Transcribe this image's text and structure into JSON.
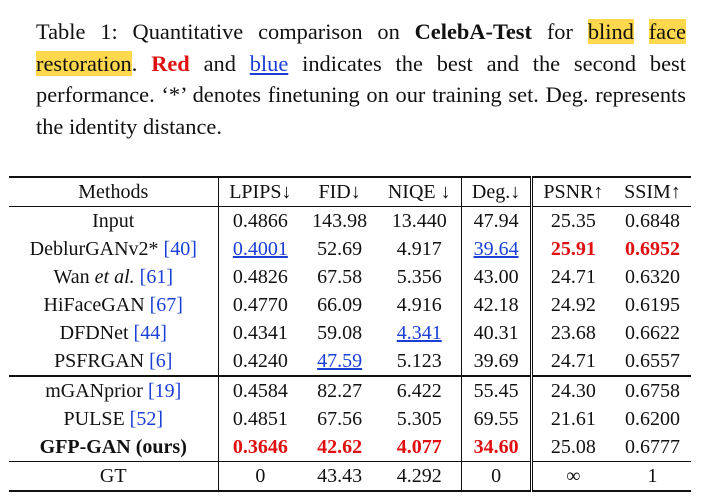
{
  "caption": {
    "prefix": "Table 1: Quantitative comparison on ",
    "dataset": "CelebA-Test",
    "for_text": " for ",
    "highlight1": "blind",
    "space": " ",
    "highlight2": "face restoration",
    "period": ". ",
    "red_word": "Red",
    "and_text": " and ",
    "blue_word": "blue",
    "rest": " indicates the best and the second best performance. ‘*’ denotes finetuning on our training set. Deg. represents the identity distance."
  },
  "table": {
    "headers": [
      "Methods",
      "LPIPS↓",
      "FID↓",
      "NIQE ↓",
      "Deg.↓",
      "PSNR↑",
      "SSIM↑"
    ],
    "rows": [
      {
        "name": "Input",
        "ref": "",
        "bold": false,
        "values": [
          "0.4866",
          "143.98",
          "13.440",
          "47.94",
          "25.35",
          "0.6848"
        ],
        "marks": [
          "",
          "",
          "",
          "",
          "",
          ""
        ]
      },
      {
        "name": "DeblurGANv2* ",
        "ref": "[40]",
        "bold": false,
        "values": [
          "0.4001",
          "52.69",
          "4.917",
          "39.64",
          "25.91",
          "0.6952"
        ],
        "marks": [
          "second",
          "",
          "",
          "second",
          "best",
          "best"
        ]
      },
      {
        "name": "Wan et al. ",
        "ref": "[61]",
        "bold": false,
        "values": [
          "0.4826",
          "67.58",
          "5.356",
          "43.00",
          "24.71",
          "0.6320"
        ],
        "marks": [
          "",
          "",
          "",
          "",
          "",
          ""
        ]
      },
      {
        "name": "HiFaceGAN ",
        "ref": "[67]",
        "bold": false,
        "values": [
          "0.4770",
          "66.09",
          "4.916",
          "42.18",
          "24.92",
          "0.6195"
        ],
        "marks": [
          "",
          "",
          "",
          "",
          "",
          ""
        ]
      },
      {
        "name": "DFDNet ",
        "ref": "[44]",
        "bold": false,
        "values": [
          "0.4341",
          "59.08",
          "4.341",
          "40.31",
          "23.68",
          "0.6622"
        ],
        "marks": [
          "",
          "",
          "second",
          "",
          "",
          ""
        ]
      },
      {
        "name": "PSFRGAN ",
        "ref": "[6]",
        "bold": false,
        "values": [
          "0.4240",
          "47.59",
          "5.123",
          "39.69",
          "24.71",
          "0.6557"
        ],
        "marks": [
          "",
          "second",
          "",
          "",
          "",
          ""
        ]
      },
      {
        "name": "mGANprior ",
        "ref": "[19]",
        "bold": false,
        "values": [
          "0.4584",
          "82.27",
          "6.422",
          "55.45",
          "24.30",
          "0.6758"
        ],
        "marks": [
          "",
          "",
          "",
          "",
          "",
          ""
        ]
      },
      {
        "name": "PULSE ",
        "ref": "[52]",
        "bold": false,
        "values": [
          "0.4851",
          "67.56",
          "5.305",
          "69.55",
          "21.61",
          "0.6200"
        ],
        "marks": [
          "",
          "",
          "",
          "",
          "",
          ""
        ]
      },
      {
        "name": "GFP-GAN (ours)",
        "ref": "",
        "bold": true,
        "values": [
          "0.3646",
          "42.62",
          "4.077",
          "34.60",
          "25.08",
          "0.6777"
        ],
        "marks": [
          "best",
          "best",
          "best",
          "best",
          "",
          ""
        ]
      },
      {
        "name": "GT",
        "ref": "",
        "bold": false,
        "values": [
          "0",
          "43.43",
          "4.292",
          "0",
          "∞",
          "1"
        ],
        "marks": [
          "",
          "",
          "",
          "",
          "",
          ""
        ]
      }
    ]
  }
}
